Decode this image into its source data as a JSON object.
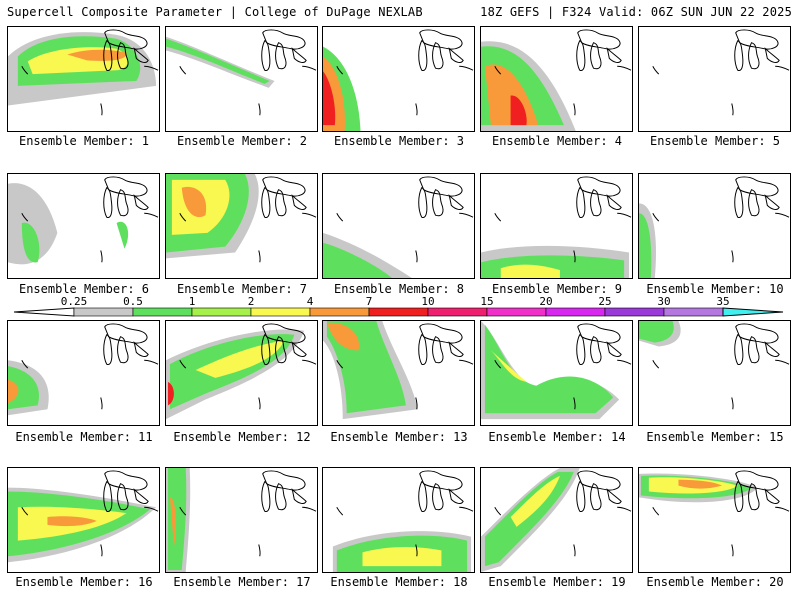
{
  "header": {
    "title_left": "Supercell Composite Parameter | College of DuPage NEXLAB",
    "title_right": "18Z GEFS | F324 Valid: 06Z SUN JUN 22 2025"
  },
  "members": [
    {
      "label": "Ensemble Member: 1"
    },
    {
      "label": "Ensemble Member: 2"
    },
    {
      "label": "Ensemble Member: 3"
    },
    {
      "label": "Ensemble Member: 4"
    },
    {
      "label": "Ensemble Member: 5"
    },
    {
      "label": "Ensemble Member: 6"
    },
    {
      "label": "Ensemble Member: 7"
    },
    {
      "label": "Ensemble Member: 8"
    },
    {
      "label": "Ensemble Member: 9"
    },
    {
      "label": "Ensemble Member: 10"
    },
    {
      "label": "Ensemble Member: 11"
    },
    {
      "label": "Ensemble Member: 12"
    },
    {
      "label": "Ensemble Member: 13"
    },
    {
      "label": "Ensemble Member: 14"
    },
    {
      "label": "Ensemble Member: 15"
    },
    {
      "label": "Ensemble Member: 16"
    },
    {
      "label": "Ensemble Member: 17"
    },
    {
      "label": "Ensemble Member: 18"
    },
    {
      "label": "Ensemble Member: 19"
    },
    {
      "label": "Ensemble Member: 20"
    }
  ],
  "colorbar": {
    "ticks": [
      "0.25",
      "0.5",
      "1",
      "2",
      "4",
      "7",
      "10",
      "15",
      "20",
      "25",
      "30",
      "35"
    ],
    "colors": [
      "#c8c8c8",
      "#5ee05e",
      "#a6f04a",
      "#f8f850",
      "#f89a3a",
      "#f02020",
      "#f02070",
      "#f030c8",
      "#d828f0",
      "#9a3ad8",
      "#b478e0",
      "#40f0f0"
    ]
  }
}
